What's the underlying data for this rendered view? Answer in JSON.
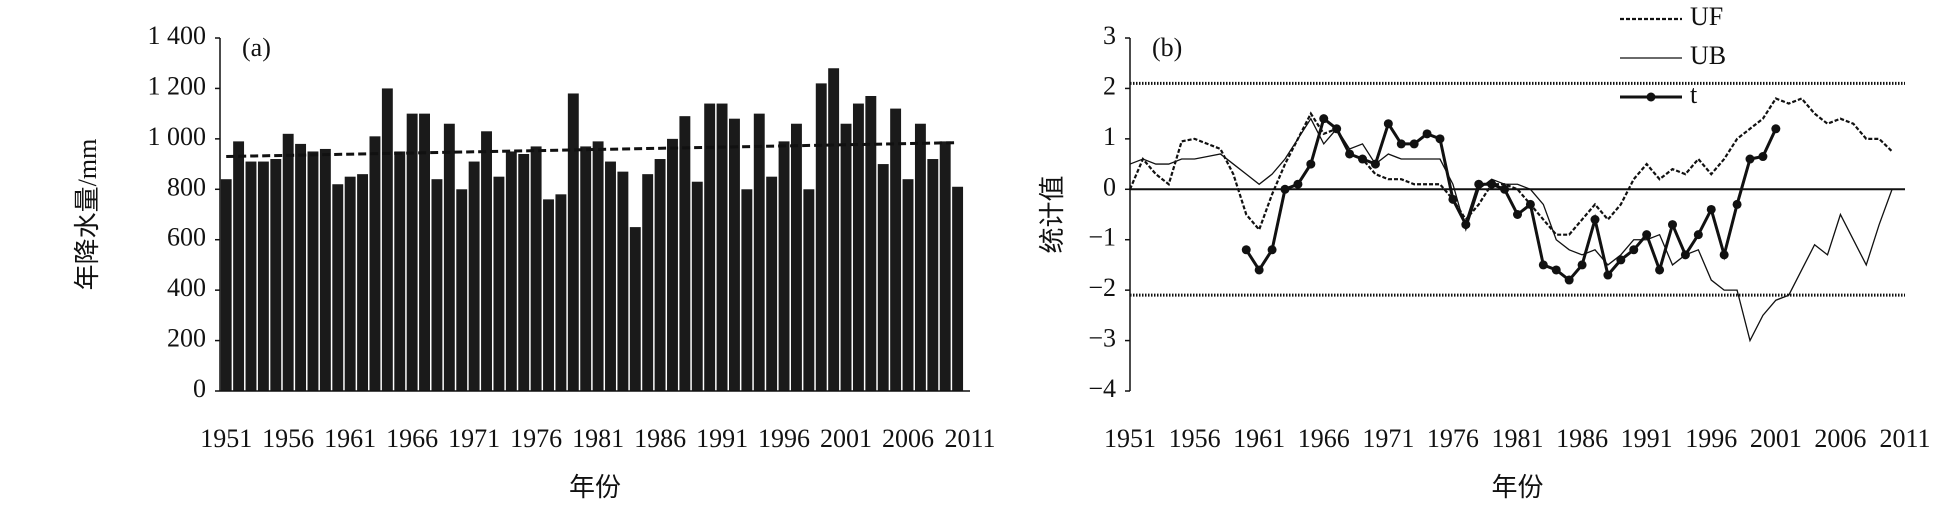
{
  "chart_data": [
    {
      "type": "bar",
      "panel_label": "(a)",
      "y_label": "年降水量/mm",
      "x_label": "年份",
      "color": "#1a1a1a",
      "x": [
        1951,
        1952,
        1953,
        1954,
        1955,
        1956,
        1957,
        1958,
        1959,
        1960,
        1961,
        1962,
        1963,
        1964,
        1965,
        1966,
        1967,
        1968,
        1969,
        1970,
        1971,
        1972,
        1973,
        1974,
        1975,
        1976,
        1977,
        1978,
        1979,
        1980,
        1981,
        1982,
        1983,
        1984,
        1985,
        1986,
        1987,
        1988,
        1989,
        1990,
        1991,
        1992,
        1993,
        1994,
        1995,
        1996,
        1997,
        1998,
        1999,
        2000,
        2001,
        2002,
        2003,
        2004,
        2005,
        2006,
        2007,
        2008,
        2009,
        2010
      ],
      "values": [
        840,
        990,
        910,
        910,
        920,
        1020,
        980,
        950,
        960,
        820,
        850,
        860,
        1010,
        1200,
        950,
        1100,
        1100,
        840,
        1060,
        800,
        910,
        1030,
        850,
        950,
        940,
        970,
        760,
        780,
        1180,
        970,
        990,
        910,
        870,
        650,
        860,
        920,
        1000,
        1090,
        830,
        1140,
        1140,
        1080,
        800,
        1100,
        850,
        990,
        1060,
        800,
        1220,
        1280,
        1060,
        1140,
        1170,
        900,
        1120,
        840,
        1060,
        920,
        990,
        810
      ],
      "trend": {
        "x": [
          1951,
          2010
        ],
        "values": [
          930,
          985
        ]
      },
      "xlim": [
        1950.5,
        2011
      ],
      "xticks": [
        1951,
        1956,
        1961,
        1966,
        1971,
        1976,
        1981,
        1986,
        1991,
        1996,
        2001,
        2006,
        2011
      ],
      "ylim": [
        0,
        1400
      ],
      "yticks": [
        0,
        200,
        400,
        600,
        800,
        {
          "value": 1000,
          "label": "1 000"
        },
        {
          "value": 1200,
          "label": "1 200"
        },
        {
          "value": 1400,
          "label": "1 400"
        }
      ]
    },
    {
      "type": "line",
      "panel_label": "(b)",
      "y_label": "统计值",
      "x_label": "年份",
      "legend": "top-right",
      "x": [
        1951,
        1952,
        1953,
        1954,
        1955,
        1956,
        1957,
        1958,
        1959,
        1960,
        1961,
        1962,
        1963,
        1964,
        1965,
        1966,
        1967,
        1968,
        1969,
        1970,
        1971,
        1972,
        1973,
        1974,
        1975,
        1976,
        1977,
        1978,
        1979,
        1980,
        1981,
        1982,
        1983,
        1984,
        1985,
        1986,
        1987,
        1988,
        1989,
        1990,
        1991,
        1992,
        1993,
        1994,
        1995,
        1996,
        1997,
        1998,
        1999,
        2000,
        2001,
        2002,
        2003,
        2004,
        2005,
        2006,
        2007,
        2008,
        2009,
        2010
      ],
      "series": [
        {
          "name": "UF",
          "color": "#111",
          "style": "dashed",
          "values": [
            0,
            0.6,
            0.3,
            0.1,
            0.95,
            1.0,
            0.9,
            0.8,
            0.3,
            -0.5,
            -0.8,
            -0.1,
            0.5,
            1.0,
            1.5,
            1.1,
            1.2,
            0.7,
            0.6,
            0.3,
            0.2,
            0.2,
            0.1,
            0.1,
            0.1,
            -0.2,
            -0.6,
            -0.3,
            0.1,
            0.1,
            0,
            -0.3,
            -0.6,
            -0.9,
            -0.9,
            -0.6,
            -0.3,
            -0.6,
            -0.3,
            0.2,
            0.5,
            0.2,
            0.4,
            0.3,
            0.6,
            0.3,
            0.6,
            1.0,
            1.2,
            1.4,
            1.8,
            1.7,
            1.8,
            1.5,
            1.3,
            1.4,
            1.3,
            1.0,
            1.0,
            0.75
          ]
        },
        {
          "name": "UB",
          "color": "#111",
          "style": "thin",
          "values": [
            0.5,
            0.6,
            0.5,
            0.5,
            0.6,
            0.6,
            0.65,
            0.7,
            0.5,
            0.3,
            0.1,
            0.3,
            0.6,
            1.0,
            1.4,
            0.9,
            1.2,
            0.8,
            0.9,
            0.5,
            0.7,
            0.6,
            0.6,
            0.6,
            0.6,
            0.1,
            -0.8,
            0.0,
            0.2,
            0.1,
            0.1,
            0,
            -0.3,
            -1.0,
            -1.2,
            -1.3,
            -1.2,
            -1.5,
            -1.3,
            -1.0,
            -1.0,
            -0.9,
            -1.5,
            -1.3,
            -1.2,
            -1.8,
            -2.0,
            -2.0,
            -3.0,
            -2.5,
            -2.2,
            -2.1,
            -1.6,
            -1.1,
            -1.3,
            -0.5,
            -1.0,
            -1.5,
            -0.7,
            0.0
          ]
        },
        {
          "name": "t",
          "color": "#111",
          "style": "marker",
          "values": [
            null,
            null,
            null,
            null,
            null,
            null,
            null,
            null,
            null,
            -1.2,
            -1.6,
            -1.2,
            0.0,
            0.1,
            0.5,
            1.4,
            1.2,
            0.7,
            0.6,
            0.5,
            1.3,
            0.9,
            0.9,
            1.1,
            1.0,
            -0.2,
            -0.7,
            0.1,
            0.1,
            0.0,
            -0.5,
            -0.3,
            -1.5,
            -1.6,
            -1.8,
            -1.5,
            -0.6,
            -1.7,
            -1.4,
            -1.2,
            -0.9,
            -1.6,
            -0.7,
            -1.3,
            -0.9,
            -0.4,
            -1.3,
            -0.3,
            0.6,
            0.65,
            1.2,
            null,
            null,
            null,
            null,
            null,
            null,
            null,
            null,
            null
          ]
        }
      ],
      "reference_lines": [
        2.1,
        -2.1
      ],
      "xlim": [
        1951,
        2011
      ],
      "xticks": [
        1951,
        1956,
        1961,
        1966,
        1971,
        1976,
        1981,
        1986,
        1991,
        1996,
        2001,
        2006,
        2011
      ],
      "ylim": [
        -4,
        3
      ],
      "yticks": [
        {
          "value": -4,
          "label": "−4"
        },
        {
          "value": -3,
          "label": "−3"
        },
        {
          "value": -2,
          "label": "−2"
        },
        {
          "value": -1,
          "label": "−1"
        },
        0,
        1,
        2,
        3
      ]
    }
  ]
}
